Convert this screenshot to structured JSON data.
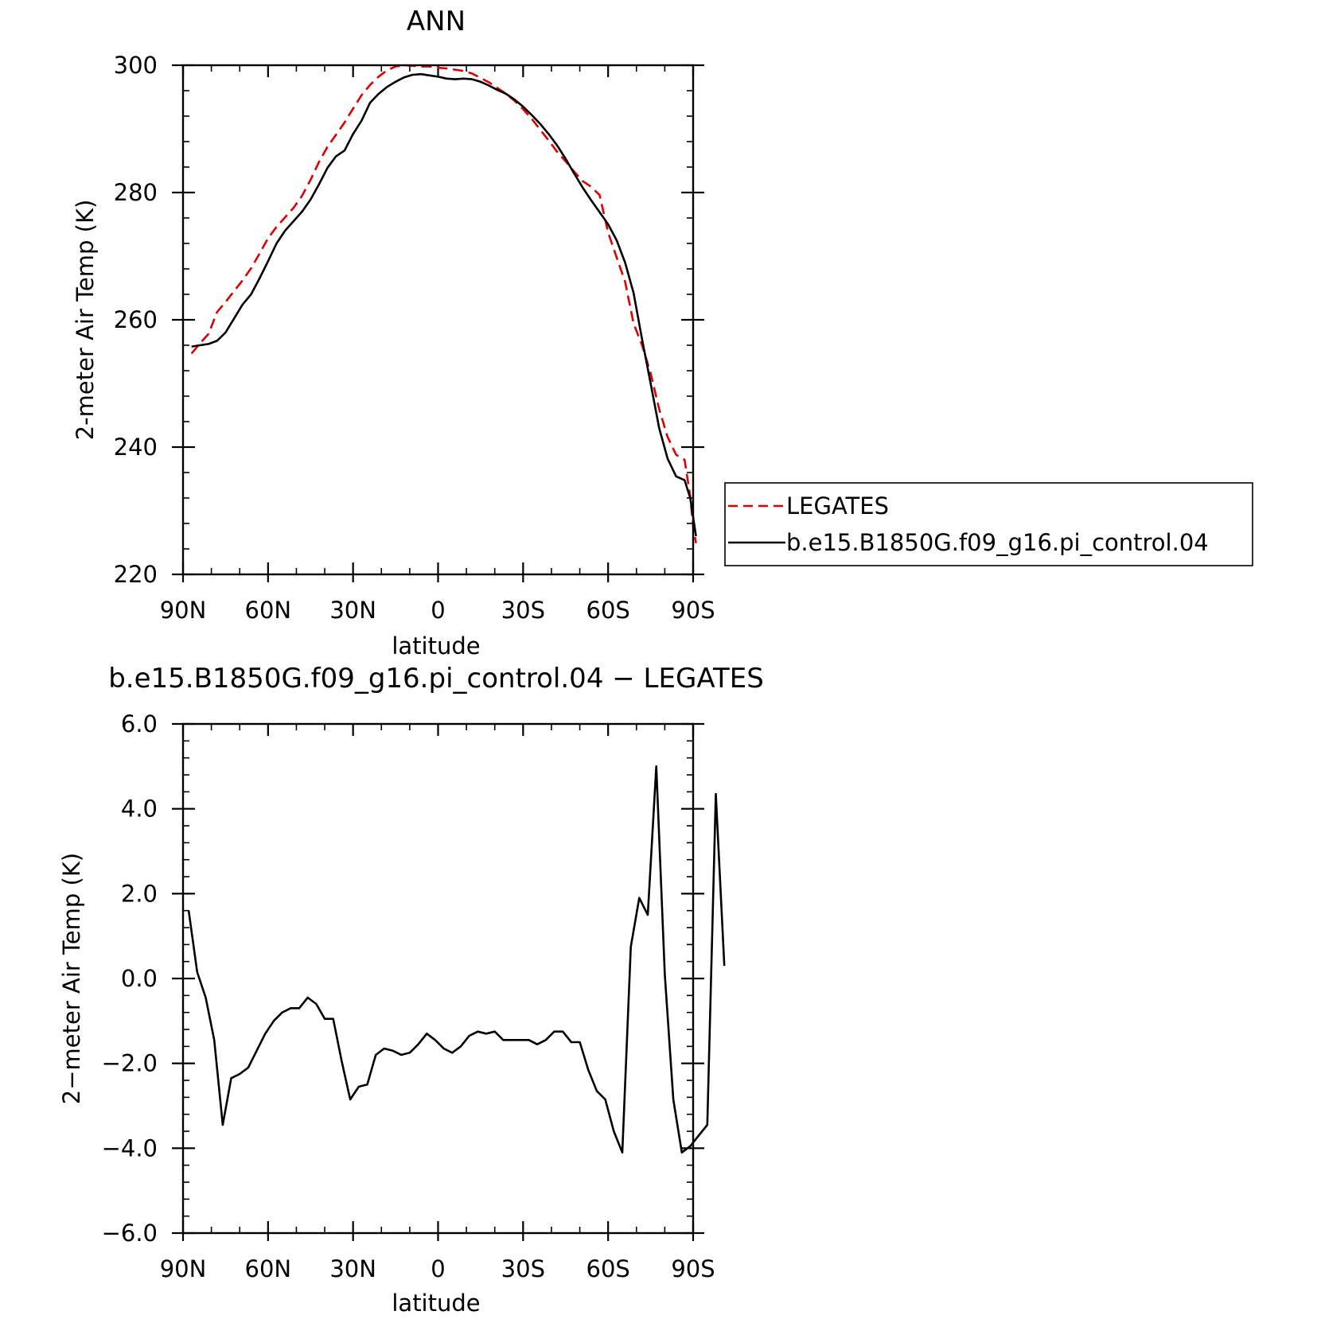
{
  "chart_data": [
    {
      "type": "line",
      "title": "ANN",
      "xlabel": "latitude",
      "ylabel": "2-meter Air Temp (K)",
      "xlim": [
        90,
        -90
      ],
      "ylim": [
        220,
        300
      ],
      "x_ticks": [
        {
          "value": 90,
          "label": "90N"
        },
        {
          "value": 60,
          "label": "60N"
        },
        {
          "value": 30,
          "label": "30N"
        },
        {
          "value": 0,
          "label": "0"
        },
        {
          "value": -30,
          "label": "30S"
        },
        {
          "value": -60,
          "label": "60S"
        },
        {
          "value": -90,
          "label": "90S"
        }
      ],
      "y_ticks": [
        {
          "value": 300,
          "label": "300"
        },
        {
          "value": 280,
          "label": "280"
        },
        {
          "value": 260,
          "label": "260"
        },
        {
          "value": 240,
          "label": "240"
        },
        {
          "value": 220,
          "label": "220"
        }
      ],
      "legend_position": "right",
      "series": [
        {
          "name": "LEGATES",
          "color": "#e00000",
          "dash": "dashed",
          "points": [
            [
              87,
              254.7
            ],
            [
              84,
              256.3
            ],
            [
              81,
              257.8
            ],
            [
              78,
              261.2
            ],
            [
              75,
              262.8
            ],
            [
              72,
              264.5
            ],
            [
              69,
              266.2
            ],
            [
              66,
              268.1
            ],
            [
              63,
              270.4
            ],
            [
              60,
              272.8
            ],
            [
              57,
              274.6
            ],
            [
              54,
              276.1
            ],
            [
              51,
              277.6
            ],
            [
              48,
              279.5
            ],
            [
              45,
              282.0
            ],
            [
              42,
              284.8
            ],
            [
              39,
              287.2
            ],
            [
              36,
              289.1
            ],
            [
              33,
              291.0
            ],
            [
              30,
              293.2
            ],
            [
              27,
              295.3
            ],
            [
              24,
              296.9
            ],
            [
              21,
              298.2
            ],
            [
              18,
              299.2
            ],
            [
              15,
              299.8
            ],
            [
              12,
              300.0
            ],
            [
              9,
              299.9
            ],
            [
              6,
              299.8
            ],
            [
              3,
              299.8
            ],
            [
              0,
              299.6
            ],
            [
              -3,
              299.5
            ],
            [
              -6,
              299.3
            ],
            [
              -9,
              299.1
            ],
            [
              -12,
              298.7
            ],
            [
              -15,
              298.0
            ],
            [
              -18,
              297.3
            ],
            [
              -21,
              296.4
            ],
            [
              -24,
              295.5
            ],
            [
              -27,
              294.4
            ],
            [
              -30,
              293.1
            ],
            [
              -33,
              291.6
            ],
            [
              -36,
              289.9
            ],
            [
              -39,
              288.2
            ],
            [
              -42,
              286.4
            ],
            [
              -45,
              284.9
            ],
            [
              -48,
              283.3
            ],
            [
              -51,
              281.8
            ],
            [
              -54,
              280.9
            ],
            [
              -57,
              279.6
            ],
            [
              -60,
              273.7
            ],
            [
              -63,
              269.8
            ],
            [
              -66,
              266.0
            ],
            [
              -69,
              259.4
            ],
            [
              -72,
              256.0
            ],
            [
              -75,
              251.6
            ],
            [
              -78,
              246.0
            ],
            [
              -81,
              241.6
            ],
            [
              -84,
              238.8
            ],
            [
              -87,
              238.0
            ],
            [
              -89,
              232.2
            ],
            [
              -90,
              227.5
            ],
            [
              -91,
              224.9
            ]
          ]
        },
        {
          "name": "b.e15.B1850G.f09_g16.pi_control.04",
          "color": "#000000",
          "dash": "solid",
          "points": [
            [
              87,
              255.8
            ],
            [
              84,
              256.0
            ],
            [
              81,
              256.2
            ],
            [
              78,
              256.7
            ],
            [
              75,
              258.0
            ],
            [
              72,
              260.2
            ],
            [
              69,
              262.4
            ],
            [
              66,
              264.0
            ],
            [
              63,
              266.5
            ],
            [
              60,
              269.2
            ],
            [
              57,
              272.0
            ],
            [
              54,
              274.0
            ],
            [
              51,
              275.5
            ],
            [
              48,
              277.0
            ],
            [
              45,
              278.9
            ],
            [
              42,
              281.3
            ],
            [
              39,
              283.9
            ],
            [
              36,
              285.7
            ],
            [
              33,
              286.6
            ],
            [
              30,
              289.2
            ],
            [
              27,
              291.3
            ],
            [
              24,
              294.1
            ],
            [
              21,
              295.5
            ],
            [
              18,
              296.6
            ],
            [
              15,
              297.4
            ],
            [
              12,
              298.1
            ],
            [
              9,
              298.5
            ],
            [
              6,
              298.6
            ],
            [
              3,
              298.4
            ],
            [
              0,
              298.2
            ],
            [
              -3,
              297.9
            ],
            [
              -6,
              297.8
            ],
            [
              -9,
              297.9
            ],
            [
              -12,
              297.8
            ],
            [
              -15,
              297.4
            ],
            [
              -18,
              296.8
            ],
            [
              -21,
              296.1
            ],
            [
              -24,
              295.5
            ],
            [
              -27,
              294.6
            ],
            [
              -30,
              293.5
            ],
            [
              -33,
              292.2
            ],
            [
              -36,
              290.8
            ],
            [
              -39,
              289.2
            ],
            [
              -42,
              287.4
            ],
            [
              -45,
              285.3
            ],
            [
              -48,
              283.0
            ],
            [
              -51,
              280.8
            ],
            [
              -54,
              278.8
            ],
            [
              -57,
              276.9
            ],
            [
              -60,
              275.0
            ],
            [
              -63,
              272.5
            ],
            [
              -66,
              269.0
            ],
            [
              -69,
              264.2
            ],
            [
              -72,
              256.9
            ],
            [
              -75,
              250.0
            ],
            [
              -78,
              243.0
            ],
            [
              -81,
              238.2
            ],
            [
              -84,
              235.4
            ],
            [
              -87,
              234.8
            ],
            [
              -89,
              232.0
            ],
            [
              -90,
              229.0
            ],
            [
              -91,
              226.0
            ]
          ]
        }
      ]
    },
    {
      "type": "line",
      "title": "b.e15.B1850G.f09_g16.pi_control.04 − LEGATES",
      "xlabel": "latitude",
      "ylabel": "2−meter Air Temp (K)",
      "xlim": [
        90,
        -90
      ],
      "ylim": [
        -6,
        6
      ],
      "x_ticks": [
        {
          "value": 90,
          "label": "90N"
        },
        {
          "value": 60,
          "label": "60N"
        },
        {
          "value": 30,
          "label": "30N"
        },
        {
          "value": 0,
          "label": "0"
        },
        {
          "value": -30,
          "label": "30S"
        },
        {
          "value": -60,
          "label": "60S"
        },
        {
          "value": -90,
          "label": "90S"
        }
      ],
      "y_ticks": [
        {
          "value": 6,
          "label": "6.0"
        },
        {
          "value": 4,
          "label": "4.0"
        },
        {
          "value": 2,
          "label": "2.0"
        },
        {
          "value": 0,
          "label": "0.0"
        },
        {
          "value": -2,
          "label": "−2.0"
        },
        {
          "value": -4,
          "label": "−4.0"
        },
        {
          "value": -6,
          "label": "−6.0"
        }
      ],
      "series": [
        {
          "color": "#000000",
          "dash": "solid",
          "points": [
            [
              88,
              1.6
            ],
            [
              85,
              0.15
            ],
            [
              82,
              -0.45
            ],
            [
              79,
              -1.45
            ],
            [
              76,
              -3.45
            ],
            [
              73,
              -2.35
            ],
            [
              70,
              -2.25
            ],
            [
              67,
              -2.1
            ],
            [
              64,
              -1.7
            ],
            [
              61,
              -1.3
            ],
            [
              58,
              -1.0
            ],
            [
              55,
              -0.8
            ],
            [
              52,
              -0.7
            ],
            [
              49,
              -0.7
            ],
            [
              46,
              -0.45
            ],
            [
              43,
              -0.6
            ],
            [
              40,
              -0.95
            ],
            [
              37,
              -0.95
            ],
            [
              34,
              -1.95
            ],
            [
              31,
              -2.85
            ],
            [
              28,
              -2.55
            ],
            [
              25,
              -2.5
            ],
            [
              22,
              -1.8
            ],
            [
              19,
              -1.65
            ],
            [
              16,
              -1.7
            ],
            [
              13,
              -1.8
            ],
            [
              10,
              -1.75
            ],
            [
              7,
              -1.55
            ],
            [
              4,
              -1.3
            ],
            [
              1,
              -1.45
            ],
            [
              -2,
              -1.65
            ],
            [
              -5,
              -1.75
            ],
            [
              -8,
              -1.6
            ],
            [
              -11,
              -1.35
            ],
            [
              -14,
              -1.25
            ],
            [
              -17,
              -1.3
            ],
            [
              -20,
              -1.25
            ],
            [
              -23,
              -1.45
            ],
            [
              -26,
              -1.45
            ],
            [
              -29,
              -1.45
            ],
            [
              -32,
              -1.45
            ],
            [
              -35,
              -1.55
            ],
            [
              -38,
              -1.45
            ],
            [
              -41,
              -1.25
            ],
            [
              -44,
              -1.25
            ],
            [
              -47,
              -1.5
            ],
            [
              -50,
              -1.5
            ],
            [
              -53,
              -2.15
            ],
            [
              -56,
              -2.65
            ],
            [
              -59,
              -2.85
            ],
            [
              -62,
              -3.6
            ],
            [
              -65,
              -4.1
            ],
            [
              -68,
              0.75
            ],
            [
              -71,
              1.9
            ],
            [
              -74,
              1.5
            ],
            [
              -77,
              5.0
            ],
            [
              -80,
              0.1
            ],
            [
              -83,
              -2.85
            ],
            [
              -86,
              -4.1
            ],
            [
              -89,
              -3.95
            ],
            [
              -92,
              -3.7
            ],
            [
              -95,
              -3.45
            ],
            [
              -98,
              4.35
            ],
            [
              -101,
              0.3
            ]
          ]
        }
      ]
    }
  ]
}
